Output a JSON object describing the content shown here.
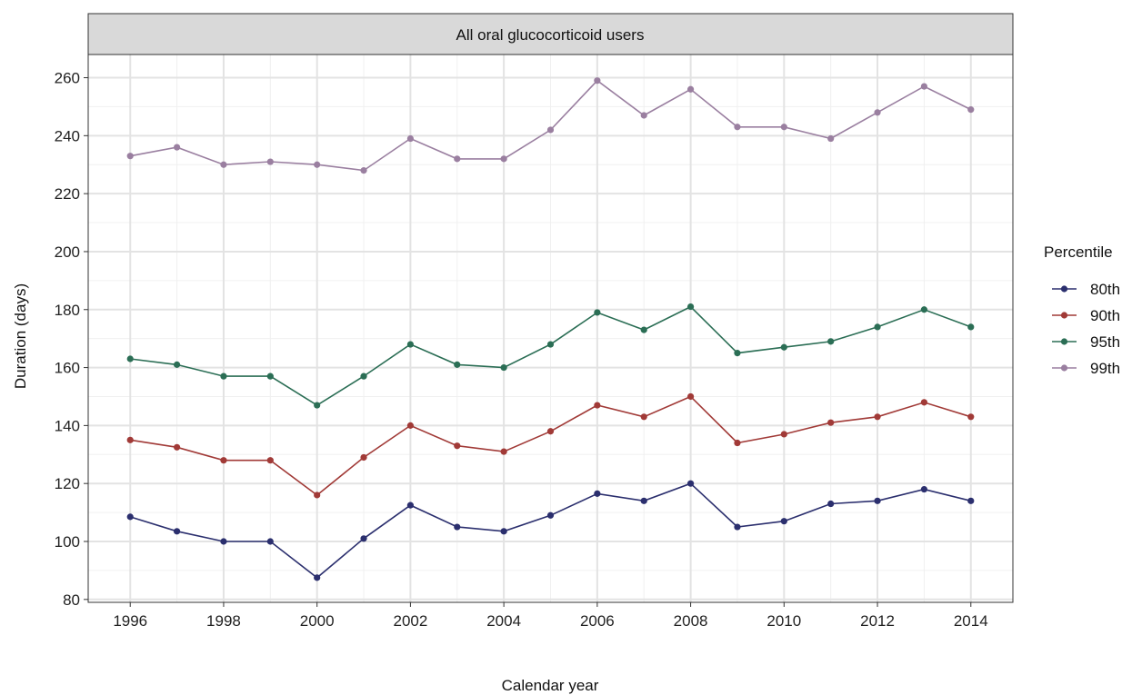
{
  "chart_data": {
    "type": "line",
    "strip_title": "All oral glucocorticoid users",
    "xlabel": "Calendar year",
    "ylabel": "Duration (days)",
    "x": [
      1996,
      1997,
      1998,
      1999,
      2000,
      2001,
      2002,
      2003,
      2004,
      2005,
      2006,
      2007,
      2008,
      2009,
      2010,
      2011,
      2012,
      2013,
      2014
    ],
    "x_ticks": [
      "1996",
      "1998",
      "2000",
      "2002",
      "2004",
      "2006",
      "2008",
      "2010",
      "2012",
      "2014"
    ],
    "y_ticks": [
      "80",
      "100",
      "120",
      "140",
      "160",
      "180",
      "200",
      "220",
      "240",
      "260"
    ],
    "xlim": [
      1995.1,
      2014.9
    ],
    "ylim": [
      79,
      268
    ],
    "grid": true,
    "legend": {
      "title": "Percentile",
      "position": "right"
    },
    "series": [
      {
        "name": "80th",
        "color": "#2b2f6e",
        "values": [
          108.5,
          103.5,
          100,
          100,
          87.5,
          101,
          112.5,
          105,
          103.5,
          109,
          116.5,
          114,
          120,
          105,
          107,
          113,
          114,
          118,
          114
        ]
      },
      {
        "name": "90th",
        "color": "#a13a37",
        "values": [
          135,
          132.5,
          128,
          128,
          116,
          129,
          140,
          133,
          131,
          138,
          147,
          143,
          150,
          134,
          137,
          141,
          143,
          148,
          143
        ]
      },
      {
        "name": "95th",
        "color": "#2b6e55",
        "values": [
          163,
          161,
          157,
          157,
          147,
          157,
          168,
          161,
          160,
          168,
          179,
          173,
          181,
          165,
          167,
          169,
          174,
          180,
          174
        ]
      },
      {
        "name": "99th",
        "color": "#9a7fa0",
        "values": [
          233,
          236,
          230,
          231,
          230,
          228,
          239,
          232,
          232,
          242,
          259,
          247,
          256,
          243,
          243,
          239,
          248,
          257,
          249
        ]
      }
    ]
  }
}
